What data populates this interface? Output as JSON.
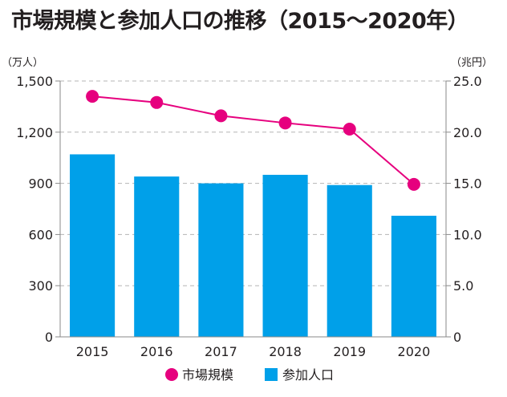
{
  "chart_data": {
    "type": "bar",
    "title": "市場規模と参加人口の推移（2015～2020年）",
    "categories": [
      "2015",
      "2016",
      "2017",
      "2018",
      "2019",
      "2020"
    ],
    "y_left": {
      "unit": "（万人）",
      "ylim": [
        0,
        1500
      ],
      "ticks": [
        "0",
        "300",
        "600",
        "900",
        "1,200",
        "1,500"
      ],
      "tick_values": [
        0,
        300,
        600,
        900,
        1200,
        1500
      ]
    },
    "y_right": {
      "unit": "（兆円）",
      "ylim": [
        0,
        25
      ],
      "ticks": [
        "0",
        "5.0",
        "10.0",
        "15.0",
        "20.0",
        "25.0"
      ],
      "tick_values": [
        0,
        5,
        10,
        15,
        20,
        25
      ]
    },
    "series": [
      {
        "name": "市場規模",
        "type": "line",
        "axis": "right",
        "color": "#e6007e",
        "values": [
          23.5,
          22.9,
          21.6,
          20.9,
          20.3,
          14.9
        ]
      },
      {
        "name": "参加人口",
        "type": "bar",
        "axis": "left",
        "color": "#00a0e9",
        "values": [
          1070,
          940,
          900,
          950,
          890,
          710
        ]
      }
    ],
    "grid": true,
    "legend_position": "bottom"
  }
}
